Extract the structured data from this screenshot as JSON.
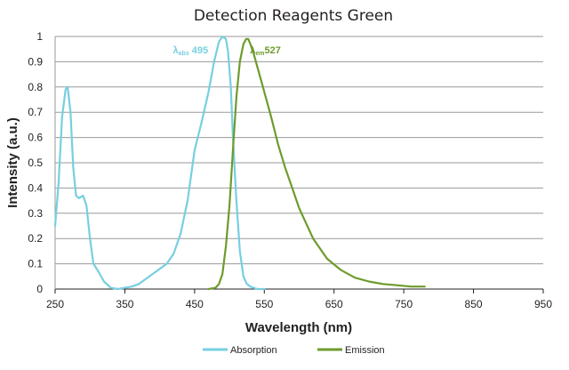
{
  "chart_data": {
    "type": "line",
    "title": "Detection Reagents Green",
    "xlabel": "Wavelength (nm)",
    "ylabel": "Intensity (a.u.)",
    "xlim": [
      250,
      950
    ],
    "ylim": [
      0,
      1
    ],
    "x_ticks": [
      250,
      350,
      450,
      550,
      650,
      750,
      850,
      950
    ],
    "y_ticks": [
      0,
      0.1,
      0.2,
      0.3,
      0.4,
      0.5,
      0.6,
      0.7,
      0.8,
      0.9,
      1
    ],
    "grid": true,
    "legend_position": "bottom",
    "series": [
      {
        "name": "Absorption",
        "color": "#76cfe0",
        "x": [
          250,
          255,
          260,
          265,
          268,
          272,
          276,
          280,
          284,
          290,
          295,
          300,
          305,
          312,
          320,
          330,
          340,
          350,
          360,
          370,
          380,
          390,
          400,
          410,
          420,
          430,
          440,
          450,
          460,
          470,
          478,
          485,
          490,
          495,
          498,
          502,
          505,
          510,
          515,
          520,
          525,
          530,
          540,
          550
        ],
        "y": [
          0.25,
          0.42,
          0.68,
          0.79,
          0.8,
          0.7,
          0.48,
          0.37,
          0.36,
          0.37,
          0.33,
          0.2,
          0.1,
          0.07,
          0.03,
          0.005,
          0.0,
          0.005,
          0.01,
          0.02,
          0.04,
          0.06,
          0.08,
          0.1,
          0.14,
          0.22,
          0.35,
          0.55,
          0.66,
          0.78,
          0.9,
          0.98,
          1.0,
          0.99,
          0.94,
          0.8,
          0.6,
          0.35,
          0.15,
          0.05,
          0.02,
          0.01,
          0.0,
          0.0
        ]
      },
      {
        "name": "Emission",
        "color": "#6e9b2c",
        "x": [
          470,
          480,
          485,
          490,
          495,
          500,
          505,
          510,
          515,
          520,
          524,
          527,
          530,
          535,
          540,
          545,
          550,
          560,
          570,
          580,
          590,
          600,
          620,
          640,
          660,
          680,
          700,
          720,
          740,
          760,
          780
        ],
        "y": [
          0.0,
          0.005,
          0.02,
          0.06,
          0.17,
          0.33,
          0.55,
          0.76,
          0.9,
          0.97,
          0.99,
          0.99,
          0.97,
          0.93,
          0.88,
          0.83,
          0.78,
          0.68,
          0.57,
          0.48,
          0.4,
          0.32,
          0.2,
          0.12,
          0.075,
          0.045,
          0.03,
          0.02,
          0.015,
          0.01,
          0.01
        ]
      }
    ],
    "annotations": [
      {
        "main": "λ",
        "sub": "abs",
        "value": "495",
        "color": "#76cfe0",
        "x": 495,
        "y": 0.94
      },
      {
        "main": "λ",
        "sub": "em",
        "value": "527",
        "color": "#6e9b2c",
        "x": 527,
        "y": 0.94
      }
    ]
  }
}
